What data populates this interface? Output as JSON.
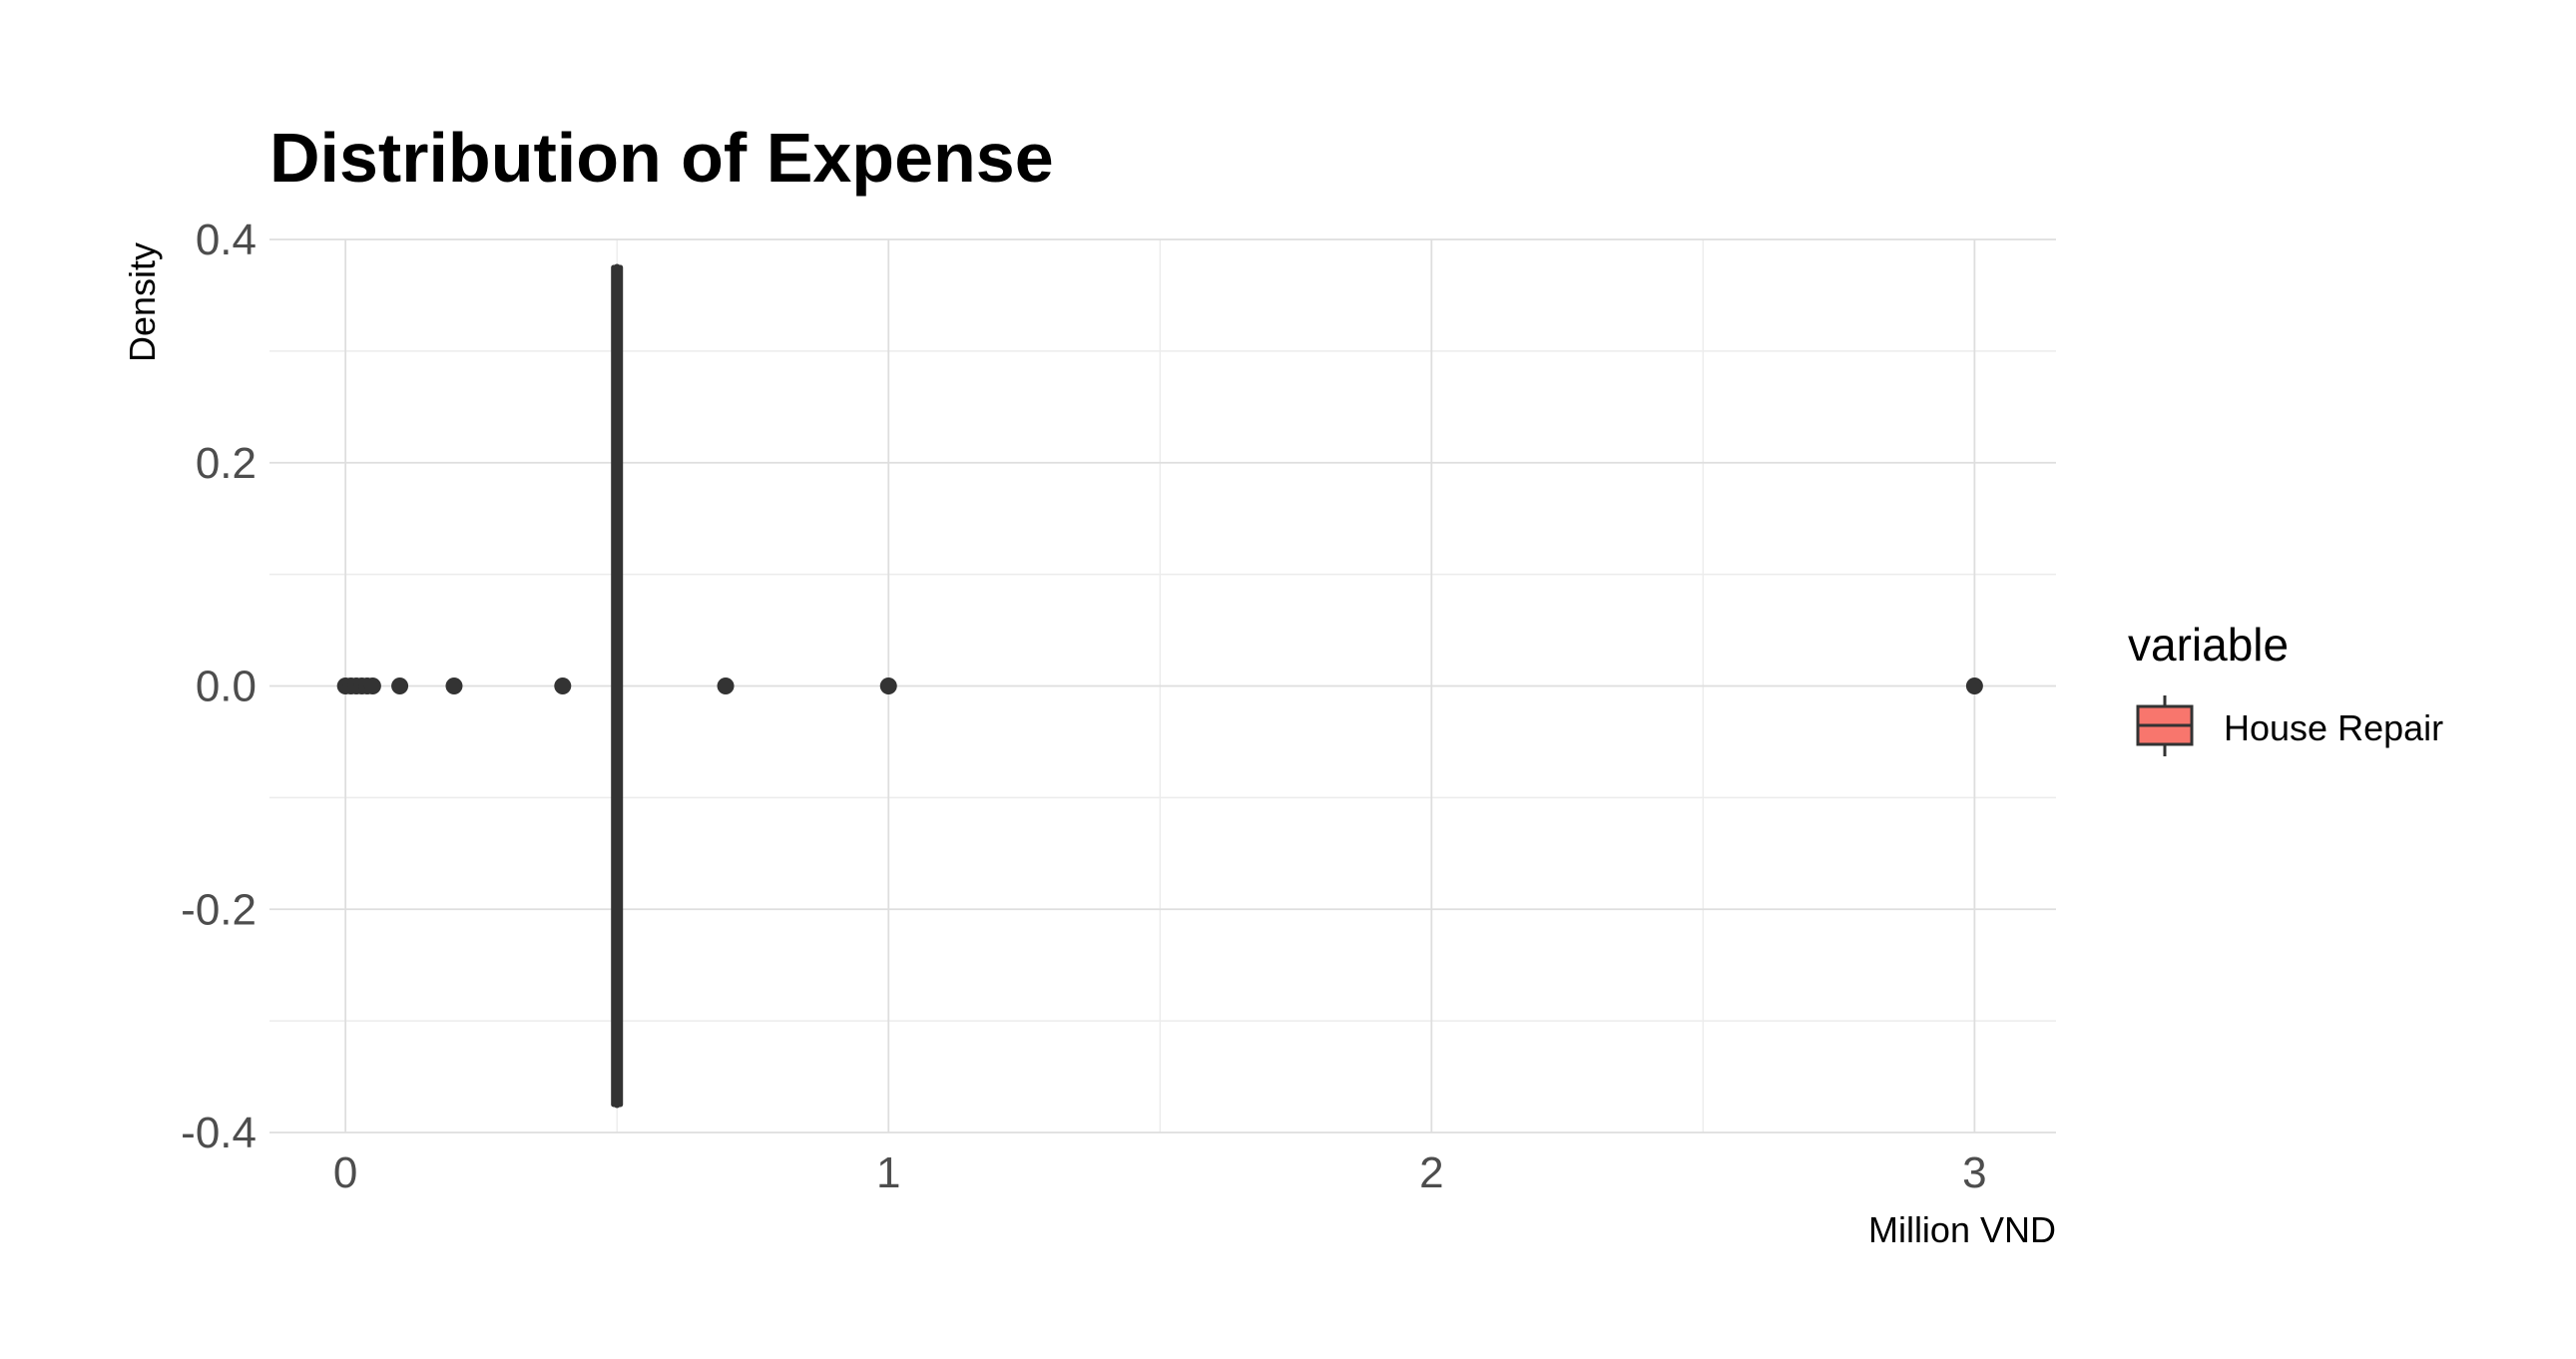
{
  "chart_data": {
    "type": "boxplot",
    "title": "Distribution of Expense",
    "xlabel": "Million VND",
    "ylabel": "Density",
    "xlim": [
      -0.14,
      3.15
    ],
    "ylim": [
      -0.4,
      0.4
    ],
    "x_ticks": [
      0,
      1,
      2,
      3
    ],
    "x_tick_labels": [
      "0",
      "1",
      "2",
      "3"
    ],
    "x_minor_ticks": [
      0.5,
      1.5,
      2.5
    ],
    "y_ticks": [
      0.4,
      0.2,
      0.0,
      -0.2,
      -0.4
    ],
    "y_tick_labels": [
      "0.4",
      "0.2",
      "0.0",
      "-0.2",
      "-0.4"
    ],
    "y_minor_ticks": [
      0.3,
      0.1,
      -0.1,
      -0.3
    ],
    "grid": true,
    "legend": {
      "title": "variable",
      "position": "right",
      "entries": [
        {
          "label": "House Repair",
          "color": "#F8766D"
        }
      ]
    },
    "series": [
      {
        "name": "House Repair",
        "color": "#F8766D",
        "box": {
          "median": 0.5,
          "q1": 0.5,
          "q3": 0.5,
          "y_min": -0.375,
          "y_max": 0.375
        },
        "outliers": [
          0.0,
          0.01,
          0.02,
          0.03,
          0.04,
          0.05,
          0.1,
          0.2,
          0.4,
          0.7,
          1.0,
          3.0
        ]
      }
    ]
  }
}
